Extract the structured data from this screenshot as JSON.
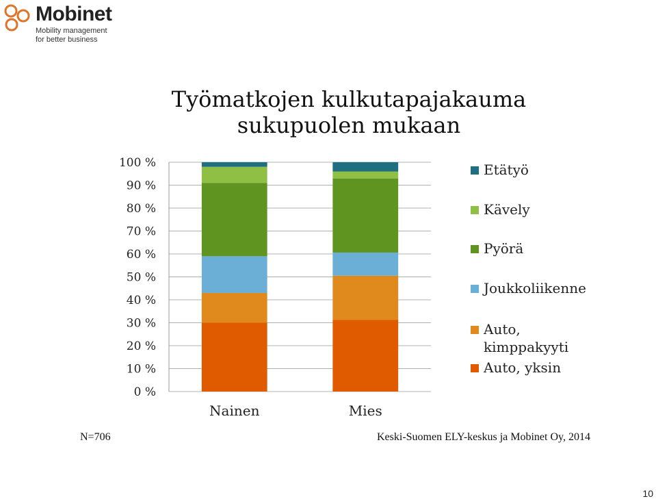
{
  "logo": {
    "name": "Mobinet",
    "tagline_1": "Mobility management",
    "tagline_2": "for better business",
    "color": "#e0732a"
  },
  "title_line_1": "Työmatkojen kulkutapajakauma",
  "title_line_2": "sukupuolen mukaan",
  "chart_data": {
    "type": "bar",
    "stacked": true,
    "categories": [
      "Nainen",
      "Mies"
    ],
    "series": [
      {
        "name": "Auto, yksin",
        "color": "#e05a00",
        "values": [
          30,
          31
        ]
      },
      {
        "name": "Auto, kimppakyyti",
        "color": "#e08a1e",
        "values": [
          13,
          19
        ]
      },
      {
        "name": "Joukkoliikenne",
        "color": "#6baed6",
        "values": [
          16,
          10
        ]
      },
      {
        "name": "Pyörä",
        "color": "#5f9420",
        "values": [
          32,
          32
        ]
      },
      {
        "name": "Kävely",
        "color": "#8fc045",
        "values": [
          7,
          3
        ]
      },
      {
        "name": "Etätyö",
        "color": "#1f6f80",
        "values": [
          2,
          4
        ]
      }
    ],
    "yticks": [
      "0 %",
      "10 %",
      "20 %",
      "30 %",
      "40 %",
      "50 %",
      "60 %",
      "70 %",
      "80 %",
      "90 %",
      "100 %"
    ],
    "ylim": [
      0,
      100
    ],
    "grid": true,
    "legend_position": "right",
    "legend_order": [
      "Etätyö",
      "Kävely",
      "Pyörä",
      "Joukkoliikenne",
      "Auto, kimppakyyti",
      "Auto, yksin"
    ]
  },
  "legend_labels": {
    "etatyo": "Etätyö",
    "kavely": "Kävely",
    "pyora": "Pyörä",
    "joukkoliikenne": "Joukkoliikenne",
    "kimppakyyti_1": "Auto,",
    "kimppakyyti_2": "kimppakyyti",
    "yksin": "Auto, yksin"
  },
  "sample_note": "N=706",
  "source_note": "Keski-Suomen ELY-keskus ja Mobinet Oy, 2014",
  "page_number": "10"
}
